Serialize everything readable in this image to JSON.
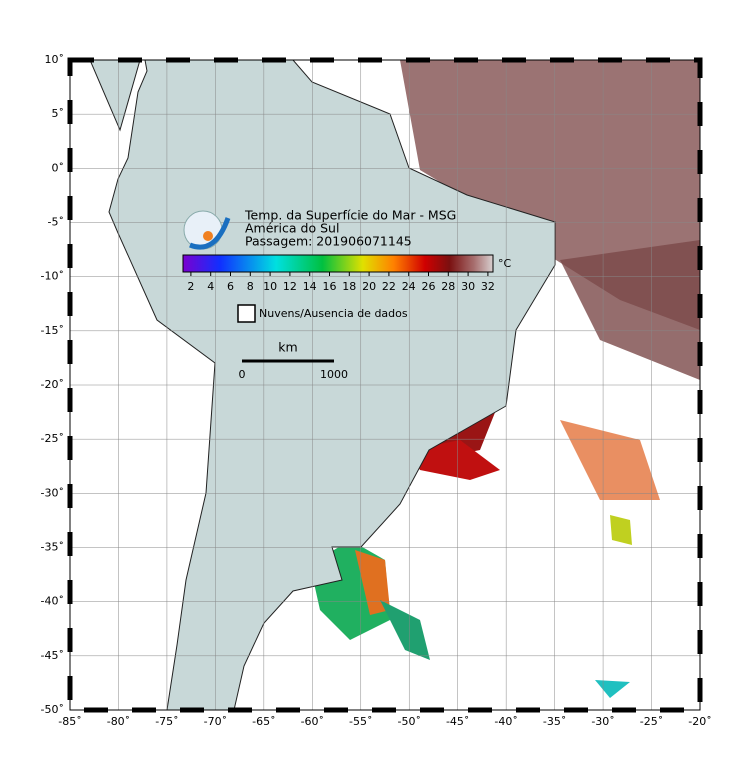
{
  "map": {
    "title": [
      "Temp. da Superfície do Mar - MSG",
      "América do Sul",
      "Passagem: 201906071145"
    ],
    "colorbar": {
      "unit": "°C",
      "ticks": [
        2,
        4,
        6,
        8,
        10,
        12,
        14,
        16,
        18,
        20,
        22,
        24,
        26,
        28,
        30,
        32
      ]
    },
    "legend": "Nuvens/Ausencia de dados",
    "scale": {
      "unit": "km",
      "start": "0",
      "end": "1000"
    },
    "lat_ticks": [
      {
        "value": 10,
        "label": "10˚"
      },
      {
        "value": 5,
        "label": "5˚"
      },
      {
        "value": 0,
        "label": "0˚"
      },
      {
        "value": -5,
        "label": "-5˚"
      },
      {
        "value": -10,
        "label": "-10˚"
      },
      {
        "value": -15,
        "label": "-15˚"
      },
      {
        "value": -20,
        "label": "-20˚"
      },
      {
        "value": -25,
        "label": "-25˚"
      },
      {
        "value": -30,
        "label": "-30˚"
      },
      {
        "value": -35,
        "label": "-35˚"
      },
      {
        "value": -40,
        "label": "-40˚"
      },
      {
        "value": -45,
        "label": "-45˚"
      },
      {
        "value": -50,
        "label": "-50˚"
      }
    ],
    "lon_ticks": [
      {
        "value": -85,
        "label": "-85˚"
      },
      {
        "value": -80,
        "label": "-80˚"
      },
      {
        "value": -75,
        "label": "-75˚"
      },
      {
        "value": -70,
        "label": "-70˚"
      },
      {
        "value": -65,
        "label": "-65˚"
      },
      {
        "value": -60,
        "label": "-60˚"
      },
      {
        "value": -55,
        "label": "-55˚"
      },
      {
        "value": -50,
        "label": "-50˚"
      },
      {
        "value": -45,
        "label": "-45˚"
      },
      {
        "value": -40,
        "label": "-40˚"
      },
      {
        "value": -35,
        "label": "-35˚"
      },
      {
        "value": -30,
        "label": "-30˚"
      },
      {
        "value": -25,
        "label": "-25˚"
      },
      {
        "value": -20,
        "label": "-20˚"
      }
    ]
  }
}
